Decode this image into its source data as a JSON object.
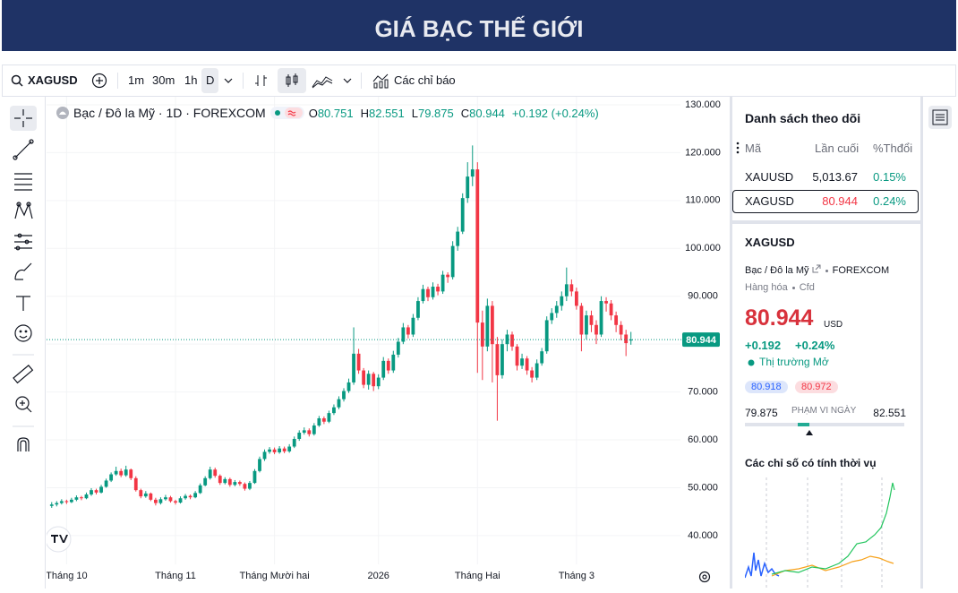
{
  "header": {
    "title": "GIÁ BẠC THẾ GIỚI"
  },
  "toolbar": {
    "symbol": "XAGUSD",
    "intervals": [
      "1m",
      "30m",
      "1h",
      "D"
    ],
    "indicators": "Các chỉ báo"
  },
  "chart_data": {
    "type": "candlestick",
    "title": "Bạc / Đô la Mỹ · 1D · FOREXCOM",
    "ohlc_labels": [
      "O",
      "H",
      "L",
      "C"
    ],
    "change": "+0.192 (+0.24%)",
    "up_color": "#089981",
    "down_color": "#f23645",
    "grid": true,
    "last_price_line": true,
    "xlim": [
      -0.5,
      127
    ],
    "xticks": [
      {
        "value": 3,
        "label": "Tháng 10"
      },
      {
        "value": 25,
        "label": "Tháng 11"
      },
      {
        "value": 45,
        "label": "Tháng Mười hai"
      },
      {
        "value": 66,
        "label": "2026"
      },
      {
        "value": 86,
        "label": "Tháng Hai"
      },
      {
        "value": 106,
        "label": "Tháng 3"
      }
    ],
    "ylim": [
      34,
      131.3
    ],
    "yticks": [
      {
        "value": 40,
        "label": "40.000"
      },
      {
        "value": 50,
        "label": "50.000"
      },
      {
        "value": 60,
        "label": "60.000"
      },
      {
        "value": 70,
        "label": "70.000"
      },
      {
        "value": 80,
        "label": "80.000"
      },
      {
        "value": 90,
        "label": "90.000"
      },
      {
        "value": 100,
        "label": "100.000"
      },
      {
        "value": 110,
        "label": "110.000"
      },
      {
        "value": 120,
        "label": "120.000"
      },
      {
        "value": 130,
        "label": "130.000"
      }
    ],
    "candles": [
      [
        46.2,
        47.0,
        45.8,
        46.5
      ],
      [
        46.5,
        47.2,
        46.1,
        46.8
      ],
      [
        46.8,
        47.6,
        46.5,
        47.2
      ],
      [
        47.2,
        47.5,
        46.6,
        47.0
      ],
      [
        47.0,
        47.9,
        46.8,
        47.5
      ],
      [
        47.5,
        48.4,
        47.2,
        48.0
      ],
      [
        48.0,
        48.3,
        47.4,
        47.8
      ],
      [
        47.8,
        49.0,
        47.6,
        48.6
      ],
      [
        48.6,
        49.9,
        48.3,
        49.5
      ],
      [
        49.5,
        49.8,
        48.6,
        49.0
      ],
      [
        49.0,
        50.6,
        48.8,
        50.2
      ],
      [
        50.2,
        51.9,
        50.0,
        51.5
      ],
      [
        51.5,
        53.2,
        51.2,
        52.8
      ],
      [
        52.8,
        54.4,
        52.5,
        53.5
      ],
      [
        53.5,
        54.0,
        52.2,
        52.6
      ],
      [
        52.6,
        54.6,
        52.3,
        53.8
      ],
      [
        53.8,
        54.0,
        51.6,
        52.0
      ],
      [
        52.0,
        52.4,
        49.2,
        49.5
      ],
      [
        49.5,
        49.8,
        47.8,
        48.2
      ],
      [
        48.2,
        49.3,
        47.9,
        48.8
      ],
      [
        48.8,
        49.0,
        47.2,
        47.5
      ],
      [
        47.5,
        47.9,
        46.3,
        46.8
      ],
      [
        46.8,
        48.0,
        46.5,
        47.6
      ],
      [
        47.6,
        48.5,
        47.3,
        48.0
      ],
      [
        48.0,
        48.3,
        46.9,
        47.2
      ],
      [
        47.2,
        47.5,
        46.5,
        46.9
      ],
      [
        46.9,
        48.2,
        46.7,
        47.8
      ],
      [
        47.8,
        48.7,
        47.5,
        48.3
      ],
      [
        48.3,
        48.6,
        47.6,
        48.0
      ],
      [
        48.0,
        49.3,
        47.8,
        48.9
      ],
      [
        48.9,
        50.9,
        48.7,
        50.5
      ],
      [
        50.5,
        52.4,
        50.3,
        52.0
      ],
      [
        52.0,
        54.4,
        51.7,
        53.8
      ],
      [
        53.8,
        54.2,
        52.1,
        52.5
      ],
      [
        52.5,
        52.8,
        50.6,
        51.0
      ],
      [
        51.0,
        52.2,
        50.7,
        51.8
      ],
      [
        51.8,
        52.1,
        50.2,
        50.6
      ],
      [
        50.6,
        51.6,
        50.3,
        51.2
      ],
      [
        51.2,
        51.5,
        50.4,
        50.8
      ],
      [
        50.8,
        51.1,
        49.4,
        49.8
      ],
      [
        49.8,
        51.4,
        49.5,
        51.0
      ],
      [
        51.0,
        53.9,
        50.8,
        53.5
      ],
      [
        53.5,
        56.5,
        53.2,
        56.0
      ],
      [
        56.0,
        58.0,
        55.6,
        57.5
      ],
      [
        57.5,
        58.5,
        57.1,
        58.0
      ],
      [
        58.0,
        58.4,
        57.0,
        57.4
      ],
      [
        57.4,
        58.7,
        57.1,
        58.2
      ],
      [
        58.2,
        58.6,
        57.2,
        57.6
      ],
      [
        57.6,
        59.1,
        57.3,
        58.6
      ],
      [
        58.6,
        60.7,
        58.3,
        60.2
      ],
      [
        60.2,
        62.0,
        59.8,
        61.5
      ],
      [
        61.5,
        62.6,
        61.1,
        62.0
      ],
      [
        62.0,
        62.4,
        60.7,
        61.2
      ],
      [
        61.2,
        63.5,
        60.9,
        63.0
      ],
      [
        63.0,
        65.0,
        62.7,
        64.5
      ],
      [
        64.5,
        64.9,
        63.3,
        63.8
      ],
      [
        63.8,
        66.1,
        63.5,
        65.6
      ],
      [
        65.6,
        67.4,
        65.2,
        66.8
      ],
      [
        66.8,
        69.1,
        66.4,
        68.5
      ],
      [
        68.5,
        70.8,
        68.0,
        70.2
      ],
      [
        70.2,
        72.8,
        69.8,
        72.0
      ],
      [
        72.0,
        83.5,
        71.5,
        78.0
      ],
      [
        78.0,
        79.0,
        73.8,
        74.5
      ],
      [
        74.5,
        75.0,
        70.8,
        71.5
      ],
      [
        71.5,
        74.5,
        70.5,
        73.8
      ],
      [
        73.8,
        74.2,
        70.2,
        71.2
      ],
      [
        71.2,
        73.7,
        70.6,
        73.0
      ],
      [
        73.0,
        77.3,
        72.5,
        76.5
      ],
      [
        76.5,
        77.0,
        73.8,
        74.5
      ],
      [
        74.5,
        78.6,
        74.0,
        77.8
      ],
      [
        77.8,
        81.3,
        77.2,
        80.5
      ],
      [
        80.5,
        84.4,
        80.0,
        83.5
      ],
      [
        83.5,
        84.0,
        81.2,
        82.0
      ],
      [
        82.0,
        86.3,
        81.5,
        85.5
      ],
      [
        85.5,
        89.8,
        85.0,
        89.0
      ],
      [
        89.0,
        92.4,
        88.5,
        91.5
      ],
      [
        91.5,
        92.0,
        89.0,
        89.8
      ],
      [
        89.8,
        92.9,
        89.3,
        92.0
      ],
      [
        92.0,
        92.6,
        90.2,
        91.0
      ],
      [
        91.0,
        95.3,
        90.5,
        94.5
      ],
      [
        94.5,
        95.0,
        92.8,
        94.0
      ],
      [
        94.0,
        101.5,
        93.5,
        100.5
      ],
      [
        100.5,
        104.5,
        99.5,
        103.5
      ],
      [
        103.5,
        111.5,
        103.0,
        110.5
      ],
      [
        110.5,
        118.0,
        109.5,
        115.0
      ],
      [
        115.0,
        121.5,
        113.0,
        116.5
      ],
      [
        116.5,
        118.0,
        74.0,
        84.5
      ],
      [
        84.5,
        87.0,
        72.5,
        79.5
      ],
      [
        79.5,
        89.5,
        78.5,
        88.0
      ],
      [
        88.0,
        89.0,
        72.0,
        80.0
      ],
      [
        80.0,
        81.5,
        64.0,
        73.5
      ],
      [
        73.5,
        81.0,
        72.8,
        80.0
      ],
      [
        80.0,
        83.0,
        78.5,
        82.0
      ],
      [
        82.0,
        82.6,
        78.6,
        79.5
      ],
      [
        79.5,
        80.0,
        74.5,
        75.5
      ],
      [
        75.5,
        78.0,
        74.8,
        77.0
      ],
      [
        77.0,
        77.5,
        73.6,
        74.5
      ],
      [
        74.5,
        75.2,
        72.0,
        73.0
      ],
      [
        73.0,
        76.8,
        72.5,
        76.0
      ],
      [
        76.0,
        79.2,
        75.5,
        78.5
      ],
      [
        78.5,
        85.8,
        78.0,
        85.0
      ],
      [
        85.0,
        87.5,
        84.2,
        86.5
      ],
      [
        86.5,
        89.0,
        85.5,
        88.0
      ],
      [
        88.0,
        91.0,
        87.0,
        90.0
      ],
      [
        90.0,
        96.0,
        89.0,
        92.5
      ],
      [
        92.5,
        93.5,
        90.0,
        91.0
      ],
      [
        91.0,
        91.8,
        87.2,
        88.0
      ],
      [
        88.0,
        88.6,
        78.5,
        82.0
      ],
      [
        82.0,
        87.0,
        81.0,
        86.0
      ],
      [
        86.0,
        87.0,
        82.5,
        84.0
      ],
      [
        84.0,
        85.0,
        80.0,
        82.0
      ],
      [
        82.0,
        90.0,
        81.5,
        89.0
      ],
      [
        89.0,
        89.8,
        86.8,
        88.5
      ],
      [
        88.5,
        89.2,
        85.0,
        86.0
      ],
      [
        86.0,
        86.8,
        82.5,
        84.0
      ],
      [
        84.0,
        84.8,
        80.8,
        82.0
      ],
      [
        82.0,
        83.0,
        77.5,
        80.2
      ],
      [
        80.751,
        82.551,
        79.875,
        80.944
      ]
    ]
  },
  "watchlist": {
    "title": "Danh sách theo dõi",
    "columns": [
      "Mã",
      "Lần cuối",
      "%Thđổi"
    ],
    "rows": [
      [
        "XAUUSD",
        "5,013.67",
        "0.15%"
      ],
      [
        "XAGUSD",
        "80.944",
        "0.24%"
      ]
    ]
  },
  "details": {
    "symbol": "XAGUSD",
    "name": "Bạc / Đô la Mỹ",
    "exchange": "FOREXCOM",
    "category": "Hàng hóa",
    "kind": "Cfd",
    "price": "80.944",
    "currency": "USD",
    "change": "+0.192",
    "change_pct": "+0.24%",
    "status": "Thị trường Mở",
    "bid": "80.918",
    "ask": "80.972",
    "range_low": "79.875",
    "range_label": "PHẠM VI NGÀY",
    "range_high": "82.551",
    "seasonal_title": "Các chỉ số có tính thời vụ"
  }
}
